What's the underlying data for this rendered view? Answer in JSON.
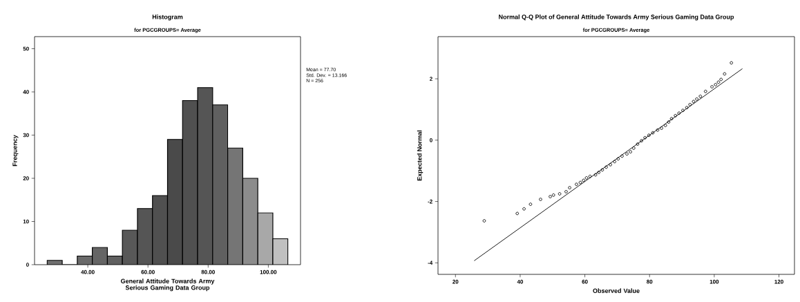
{
  "chart_data": [
    {
      "type": "histogram",
      "title": "Histogram",
      "subtitle": "for PGCGROUPS= Average",
      "xlabel": "General Attitude Towards Army Serious Gaming Data Group",
      "ylabel": "Frequency",
      "bins": [
        26.5,
        31.5,
        36.5,
        41.5,
        46.5,
        51.5,
        56.5,
        61.5,
        66.5,
        71.5,
        76.5,
        81.5,
        86.5,
        91.5,
        96.5,
        101.5,
        106.5
      ],
      "values": [
        1,
        0,
        2,
        4,
        2,
        8,
        13,
        16,
        29,
        38,
        41,
        37,
        27,
        20,
        12,
        6
      ],
      "colors": [
        "#707070",
        "#707070",
        "#6a6a6a",
        "#656565",
        "#606060",
        "#585858",
        "#555555",
        "#505050",
        "#4a4a4a",
        "#505050",
        "#555555",
        "#606060",
        "#757575",
        "#8c8c8c",
        "#a8a8a8",
        "#c0c0c0"
      ],
      "xlim": [
        22.3,
        110.7
      ],
      "ylim": [
        0,
        52.8
      ],
      "xticks": [
        {
          "value": 40,
          "label": "40.00"
        },
        {
          "value": 60,
          "label": "60.00"
        },
        {
          "value": 80,
          "label": "80.00"
        },
        {
          "value": 100,
          "label": "100.00"
        }
      ],
      "yticks": [
        0,
        10,
        20,
        30,
        40,
        50
      ],
      "annotations": [
        "Mean = 77.70",
        "Std. Dev. = 13.166",
        "N = 256"
      ]
    },
    {
      "type": "scatter",
      "title": "Normal Q-Q Plot of General Attitude Towards Army Serious Gaming Data Group",
      "subtitle": "for PGCGROUPS= Average",
      "xlabel": "Observed Value",
      "ylabel": "Expected Normal",
      "series": [
        {
          "type": "scatter",
          "marker": "circle",
          "color": "#000000",
          "x": [
            28.9,
            39.1,
            41.2,
            43.2,
            46.3,
            49.3,
            50.3,
            52.2,
            54.2,
            55.3,
            57.4,
            58.6,
            59.6,
            60.5,
            61.6,
            63.3,
            64.3,
            65.4,
            66.6,
            67.9,
            69.2,
            70.3,
            71.5,
            73.0,
            74.1,
            75.1,
            76.3,
            77.5,
            78.6,
            79.8,
            81.0,
            82.5,
            83.7,
            84.9,
            85.9,
            86.8,
            88.0,
            89.1,
            90.3,
            91.5,
            92.5,
            93.6,
            94.6,
            95.7,
            97.3,
            99.3,
            100.4,
            101.3,
            102.1,
            103.2,
            105.3
          ],
          "values": [
            -2.63,
            -2.39,
            -2.24,
            -2.09,
            -1.93,
            -1.84,
            -1.79,
            -1.75,
            -1.68,
            -1.55,
            -1.44,
            -1.38,
            -1.31,
            -1.23,
            -1.18,
            -1.13,
            -1.05,
            -0.97,
            -0.88,
            -0.8,
            -0.7,
            -0.61,
            -0.52,
            -0.45,
            -0.38,
            -0.26,
            -0.13,
            -0.02,
            0.08,
            0.16,
            0.24,
            0.33,
            0.39,
            0.48,
            0.59,
            0.7,
            0.8,
            0.88,
            0.97,
            1.06,
            1.16,
            1.26,
            1.34,
            1.43,
            1.59,
            1.74,
            1.81,
            1.89,
            1.98,
            2.16,
            2.52
          ]
        },
        {
          "type": "line",
          "marker": "none",
          "color": "#000000",
          "x": [
            25.8,
            108.7
          ],
          "values": [
            -3.93,
            2.33
          ]
        }
      ],
      "xlim": [
        14.6,
        124.8
      ],
      "ylim": [
        -4.375,
        3.375
      ],
      "xticks": [
        20,
        40,
        60,
        80,
        100,
        120
      ],
      "yticks": [
        -4,
        -2,
        0,
        2
      ]
    }
  ]
}
